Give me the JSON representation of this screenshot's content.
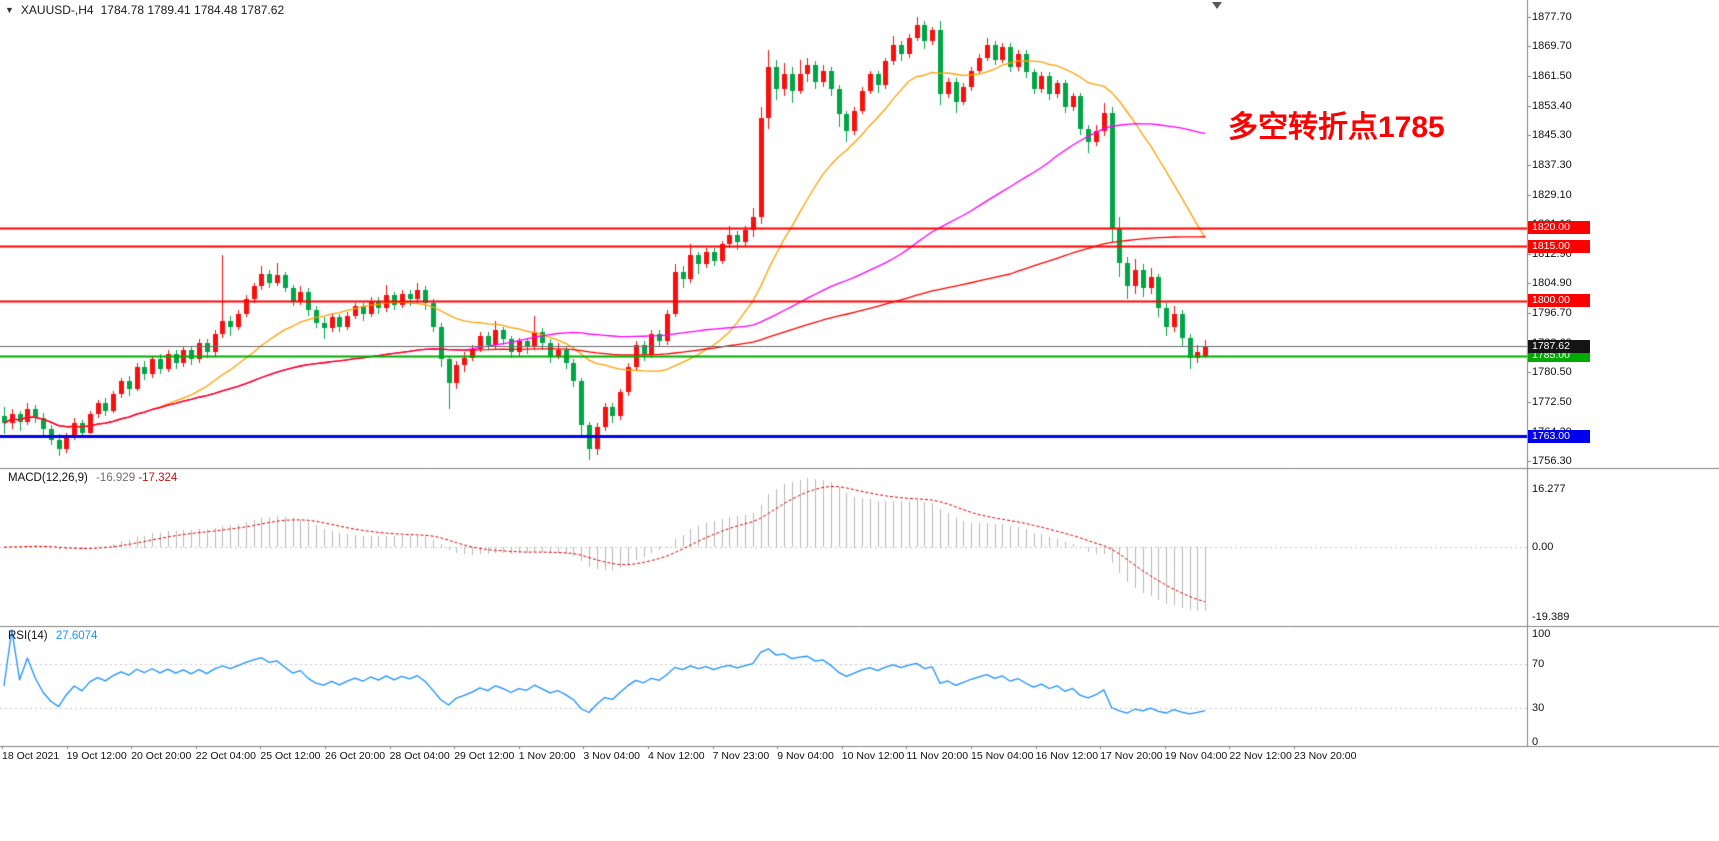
{
  "header": {
    "dropdown_marker": "▼",
    "symbol_period": "XAUUSD-,H4",
    "ohlc": "1784.78 1789.41 1784.48 1787.62"
  },
  "annotation": {
    "text": "多空转折点1785",
    "color": "#ff0000"
  },
  "chart_data": {
    "type": "candlestick",
    "symbol": "XAUUSD-",
    "timeframe": "H4",
    "current_bar": {
      "open": 1784.78,
      "high": 1789.41,
      "low": 1784.48,
      "close": 1787.62
    },
    "colors": {
      "bull": "#fa0f0f",
      "bear": "#00a645"
    },
    "price_axis_ticks": [
      1877.7,
      1869.7,
      1861.5,
      1853.4,
      1845.3,
      1837.3,
      1829.1,
      1821.1,
      1812.9,
      1804.9,
      1796.7,
      1788.6,
      1780.5,
      1772.5,
      1764.3,
      1756.3
    ],
    "x_labels": [
      "18 Oct 2021",
      "19 Oct 12:00",
      "20 Oct 20:00",
      "22 Oct 04:00",
      "25 Oct 12:00",
      "26 Oct 20:00",
      "28 Oct 04:00",
      "29 Oct 12:00",
      "1 Nov 20:00",
      "3 Nov 04:00",
      "4 Nov 12:00",
      "7 Nov 23:00",
      "9 Nov 04:00",
      "10 Nov 12:00",
      "11 Nov 20:00",
      "15 Nov 04:00",
      "16 Nov 12:00",
      "17 Nov 20:00",
      "19 Nov 04:00",
      "22 Nov 12:00",
      "23 Nov 20:00"
    ],
    "horizontal_lines": [
      {
        "value": 1820.0,
        "color": "#ff0000",
        "width": 2
      },
      {
        "value": 1815.0,
        "color": "#ff0000",
        "width": 2
      },
      {
        "value": 1800.0,
        "color": "#ff0000",
        "width": 2
      },
      {
        "value": 1785.0,
        "color": "#00aa00",
        "width": 2
      },
      {
        "value": 1763.0,
        "color": "#0000ee",
        "width": 3
      }
    ],
    "current_line": {
      "value": 1787.62,
      "color": "#6b6b6b",
      "badge_color": "#141414"
    },
    "moving_averages": [
      {
        "name": "ma-fast",
        "color": "#ffa000",
        "window": 20
      },
      {
        "name": "ma-mid",
        "color": "#ff00ff",
        "window": 60
      },
      {
        "name": "ma-slow",
        "color": "#ff0000",
        "window": 130
      }
    ],
    "indicators": {
      "macd": {
        "label": "MACD(12,26,9)",
        "value_main": "-16.929",
        "value_signal": "-17.324",
        "fast": 12,
        "slow": 26,
        "signal": 9,
        "axis_values": [
          16.277,
          0,
          -19.389
        ],
        "axis_labels": [
          "16.277",
          "0.00",
          "-19.389"
        ],
        "histogram_color": "#b8b8b8",
        "signal_color": "#e00000"
      },
      "rsi": {
        "label": "RSI(14)",
        "value": "27.6074",
        "period": 14,
        "levels": [
          70,
          30
        ],
        "axis_values": [
          100,
          70,
          30,
          0
        ],
        "axis_labels": [
          "100",
          "70",
          "30",
          "0"
        ],
        "color": "#1e90ff"
      }
    },
    "candles_ohlc": [
      [
        1768.5,
        1771,
        1763.5,
        1766.5
      ],
      [
        1766.5,
        1770.5,
        1765,
        1769
      ],
      [
        1769,
        1770,
        1764.5,
        1767
      ],
      [
        1767,
        1772,
        1766,
        1770.5
      ],
      [
        1770.5,
        1771.5,
        1766.5,
        1768
      ],
      [
        1768,
        1769.5,
        1763,
        1765
      ],
      [
        1765,
        1766,
        1760.5,
        1762
      ],
      [
        1762,
        1763.5,
        1757.5,
        1759.5
      ],
      [
        1759.5,
        1764,
        1758.5,
        1763
      ],
      [
        1763,
        1768,
        1762,
        1766.5
      ],
      [
        1766.5,
        1767.5,
        1762.5,
        1764
      ],
      [
        1764,
        1770,
        1763.5,
        1769
      ],
      [
        1769,
        1773,
        1768,
        1772
      ],
      [
        1772,
        1773.5,
        1768.5,
        1770
      ],
      [
        1770,
        1775.5,
        1769.5,
        1774.5
      ],
      [
        1774.5,
        1779,
        1773.5,
        1778
      ],
      [
        1778,
        1779.5,
        1774,
        1776
      ],
      [
        1776,
        1783,
        1775.5,
        1782
      ],
      [
        1782,
        1783.5,
        1778.5,
        1780
      ],
      [
        1780,
        1785,
        1779,
        1784
      ],
      [
        1784,
        1785.5,
        1780,
        1781.5
      ],
      [
        1781.5,
        1786.5,
        1780.5,
        1785.5
      ],
      [
        1785.5,
        1786.5,
        1781.5,
        1783
      ],
      [
        1783,
        1787.5,
        1782,
        1786.5
      ],
      [
        1786.5,
        1787.5,
        1782.5,
        1784
      ],
      [
        1784,
        1789.5,
        1783,
        1788.5
      ],
      [
        1788.5,
        1789.5,
        1784.5,
        1786
      ],
      [
        1786,
        1792,
        1785,
        1791
      ],
      [
        1791,
        1812.5,
        1790,
        1794.5
      ],
      [
        1794.5,
        1796,
        1790.5,
        1793
      ],
      [
        1793,
        1797.5,
        1792,
        1796.5
      ],
      [
        1796.5,
        1801.5,
        1795.5,
        1800.5
      ],
      [
        1800.5,
        1805,
        1799.5,
        1804
      ],
      [
        1804,
        1809.5,
        1803,
        1807.5
      ],
      [
        1807.5,
        1808.5,
        1803.5,
        1805
      ],
      [
        1805,
        1810.5,
        1804,
        1807
      ],
      [
        1807,
        1808,
        1802.5,
        1803.5
      ],
      [
        1803.5,
        1804.5,
        1798.5,
        1800
      ],
      [
        1800,
        1804,
        1799,
        1802.5
      ],
      [
        1802.5,
        1803.5,
        1796,
        1797.5
      ],
      [
        1797.5,
        1798.5,
        1792.5,
        1794
      ],
      [
        1794,
        1795.5,
        1789.5,
        1792.5
      ],
      [
        1792.5,
        1796.5,
        1791.5,
        1795.5
      ],
      [
        1795.5,
        1796.5,
        1791.5,
        1793
      ],
      [
        1793,
        1797,
        1792,
        1796
      ],
      [
        1796,
        1799.5,
        1795,
        1798.5
      ],
      [
        1798.5,
        1799.5,
        1794.5,
        1796.5
      ],
      [
        1796.5,
        1801,
        1795.5,
        1800
      ],
      [
        1800,
        1801,
        1796.5,
        1798
      ],
      [
        1798,
        1804.5,
        1797,
        1801.5
      ],
      [
        1801.5,
        1802.5,
        1797.5,
        1799
      ],
      [
        1799,
        1803,
        1798,
        1802
      ],
      [
        1802,
        1803,
        1798.5,
        1800.5
      ],
      [
        1800.5,
        1805,
        1799.5,
        1803
      ],
      [
        1803,
        1804,
        1797.5,
        1799.5
      ],
      [
        1799.5,
        1800.5,
        1791.5,
        1793
      ],
      [
        1793,
        1794,
        1782,
        1784
      ],
      [
        1784,
        1785,
        1770.5,
        1777.5
      ],
      [
        1777.5,
        1783.5,
        1776,
        1782.5
      ],
      [
        1782.5,
        1786,
        1780.5,
        1784.5
      ],
      [
        1784.5,
        1788,
        1783.5,
        1787
      ],
      [
        1787,
        1791.5,
        1786,
        1790.5
      ],
      [
        1790.5,
        1791.5,
        1786.5,
        1788
      ],
      [
        1788,
        1794.5,
        1787,
        1792
      ],
      [
        1792,
        1793,
        1788,
        1789.5
      ],
      [
        1789.5,
        1790.5,
        1784.5,
        1786
      ],
      [
        1786,
        1790,
        1785,
        1789
      ],
      [
        1789,
        1790,
        1785.5,
        1787.5
      ],
      [
        1787.5,
        1796,
        1786.5,
        1791.5
      ],
      [
        1791.5,
        1792.5,
        1786.5,
        1788.5
      ],
      [
        1788.5,
        1789.5,
        1783,
        1785
      ],
      [
        1785,
        1788.5,
        1784,
        1786.5
      ],
      [
        1786.5,
        1787.5,
        1781.5,
        1783
      ],
      [
        1783,
        1784,
        1776.5,
        1778
      ],
      [
        1778,
        1779,
        1763,
        1766
      ],
      [
        1766,
        1767,
        1756.5,
        1759.5
      ],
      [
        1759.5,
        1766.5,
        1758,
        1765.5
      ],
      [
        1765.5,
        1772,
        1764.5,
        1771
      ],
      [
        1771,
        1772,
        1766.5,
        1768.5
      ],
      [
        1768.5,
        1776,
        1767.5,
        1775
      ],
      [
        1775,
        1783,
        1774,
        1782
      ],
      [
        1782,
        1789,
        1781,
        1788
      ],
      [
        1788,
        1789,
        1783.5,
        1785.5
      ],
      [
        1785.5,
        1792,
        1784.5,
        1791
      ],
      [
        1791,
        1792,
        1787.5,
        1789
      ],
      [
        1789,
        1797.5,
        1788,
        1796.5
      ],
      [
        1796.5,
        1810,
        1795.5,
        1808
      ],
      [
        1808,
        1809.5,
        1803.5,
        1806
      ],
      [
        1806,
        1815.5,
        1805,
        1812.5
      ],
      [
        1812.5,
        1813.5,
        1807.5,
        1810
      ],
      [
        1810,
        1814.5,
        1809,
        1813.5
      ],
      [
        1813.5,
        1814.5,
        1809.5,
        1811
      ],
      [
        1811,
        1816.5,
        1810,
        1815.5
      ],
      [
        1815.5,
        1820.5,
        1814.5,
        1818
      ],
      [
        1818,
        1819,
        1814,
        1816
      ],
      [
        1816,
        1820.5,
        1815,
        1819.5
      ],
      [
        1819.5,
        1825.5,
        1817.5,
        1823
      ],
      [
        1823,
        1853,
        1821,
        1850
      ],
      [
        1850,
        1868.5,
        1847,
        1864
      ],
      [
        1864,
        1866,
        1855,
        1858
      ],
      [
        1858,
        1865,
        1856,
        1862
      ],
      [
        1862,
        1864,
        1854,
        1857.5
      ],
      [
        1857.5,
        1866,
        1856.5,
        1862
      ],
      [
        1862,
        1866.5,
        1860,
        1864.5
      ],
      [
        1864.5,
        1865.5,
        1858,
        1860
      ],
      [
        1860,
        1864.5,
        1858.5,
        1863
      ],
      [
        1863,
        1864,
        1856,
        1858
      ],
      [
        1858,
        1859,
        1847.5,
        1851
      ],
      [
        1851,
        1852,
        1843.5,
        1846.5
      ],
      [
        1846.5,
        1853,
        1845.5,
        1852
      ],
      [
        1852,
        1858.5,
        1851,
        1857.5
      ],
      [
        1857.5,
        1863,
        1856.5,
        1862
      ],
      [
        1862,
        1863,
        1857,
        1859
      ],
      [
        1859,
        1866.5,
        1858,
        1865.5
      ],
      [
        1865.5,
        1872.5,
        1864.5,
        1870
      ],
      [
        1870,
        1871,
        1865.5,
        1867.5
      ],
      [
        1867.5,
        1873,
        1866.5,
        1872
      ],
      [
        1872,
        1877.7,
        1871,
        1875.5
      ],
      [
        1875.5,
        1876.5,
        1869,
        1871
      ],
      [
        1871,
        1875,
        1870,
        1874
      ],
      [
        1874,
        1876.5,
        1853.5,
        1856.5
      ],
      [
        1856.5,
        1861,
        1855.5,
        1860
      ],
      [
        1860,
        1861,
        1851.5,
        1854.5
      ],
      [
        1854.5,
        1859.5,
        1853.5,
        1858.5
      ],
      [
        1858.5,
        1864,
        1857.5,
        1863
      ],
      [
        1863,
        1867.5,
        1862,
        1866.5
      ],
      [
        1866.5,
        1872,
        1865.5,
        1870
      ],
      [
        1870,
        1871,
        1864.5,
        1866
      ],
      [
        1866,
        1870.5,
        1865,
        1869.5
      ],
      [
        1869.5,
        1870.5,
        1862.5,
        1864
      ],
      [
        1864,
        1868.5,
        1863,
        1867.5
      ],
      [
        1867.5,
        1868.5,
        1861,
        1862.5
      ],
      [
        1862.5,
        1863.5,
        1856.5,
        1858
      ],
      [
        1858,
        1862.5,
        1857,
        1861.5
      ],
      [
        1861.5,
        1862.5,
        1855,
        1856.5
      ],
      [
        1856.5,
        1860.5,
        1855.5,
        1859.5
      ],
      [
        1859.5,
        1860.5,
        1851.5,
        1853
      ],
      [
        1853,
        1857,
        1852,
        1856
      ],
      [
        1856,
        1857,
        1845.5,
        1847
      ],
      [
        1847,
        1848,
        1840.5,
        1843.5
      ],
      [
        1843.5,
        1848,
        1842.5,
        1846.5
      ],
      [
        1846.5,
        1854,
        1845,
        1851.5
      ],
      [
        1851.5,
        1853,
        1816,
        1820
      ],
      [
        1820,
        1823,
        1806.5,
        1810.5
      ],
      [
        1810.5,
        1812,
        1800.5,
        1804
      ],
      [
        1804,
        1811.5,
        1802,
        1808.5
      ],
      [
        1808.5,
        1810,
        1801,
        1803.5
      ],
      [
        1803.5,
        1809,
        1802,
        1806.5
      ],
      [
        1806.5,
        1807.5,
        1795.5,
        1798
      ],
      [
        1798,
        1799.5,
        1790.5,
        1793
      ],
      [
        1793,
        1798.5,
        1791.5,
        1796.5
      ],
      [
        1796.5,
        1797.5,
        1787.5,
        1790
      ],
      [
        1790,
        1791,
        1781.5,
        1784.5
      ],
      [
        1784.5,
        1788,
        1783,
        1786
      ],
      [
        1784.78,
        1789.41,
        1784.48,
        1787.62
      ]
    ]
  }
}
